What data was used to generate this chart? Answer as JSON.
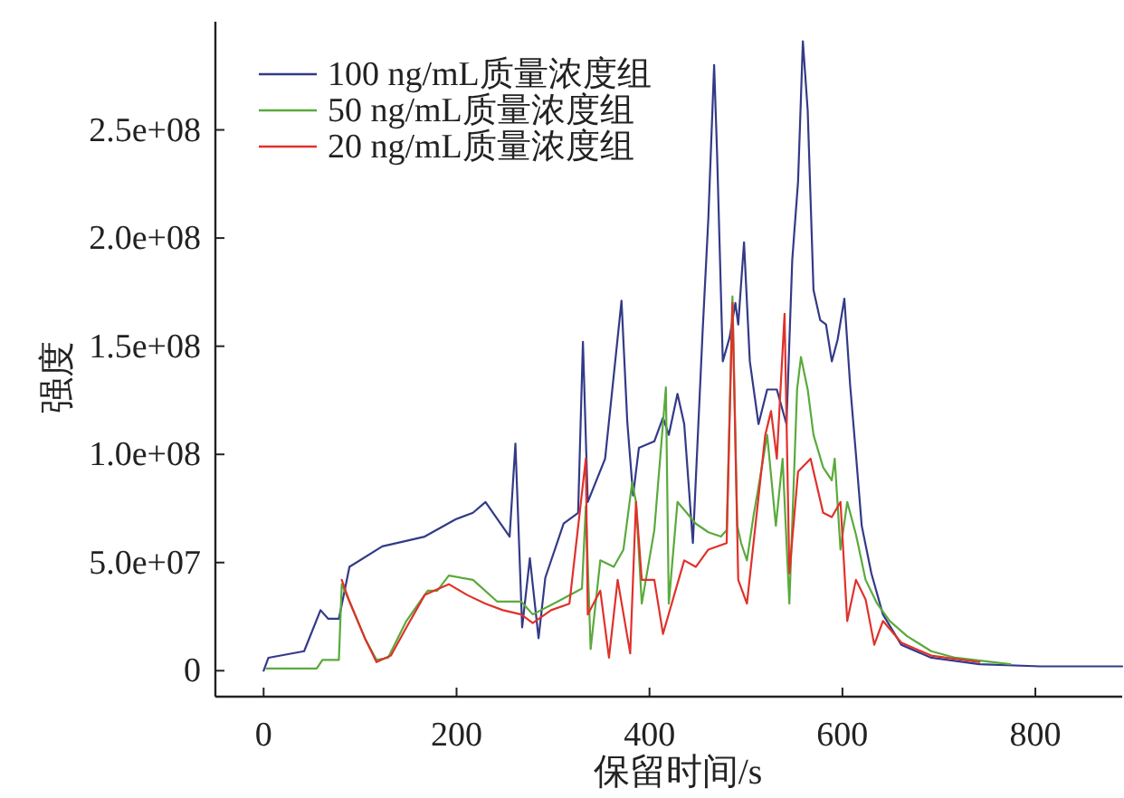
{
  "chart_data": {
    "type": "line",
    "xlabel": "保留时间/s",
    "ylabel": "强度",
    "xlim": [
      -50,
      890
    ],
    "ylim": [
      -12000000,
      300000000
    ],
    "xticks": [
      0,
      200,
      400,
      600,
      800
    ],
    "yticks": [
      {
        "value": 0,
        "label": "0"
      },
      {
        "value": 50000000,
        "label": "5.0e+07"
      },
      {
        "value": 100000000,
        "label": "1.0e+08"
      },
      {
        "value": 150000000,
        "label": "1.5e+08"
      },
      {
        "value": 200000000,
        "label": "2.0e+08"
      },
      {
        "value": 250000000,
        "label": "2.5e+08"
      }
    ],
    "legend": "top left",
    "grid": false,
    "series": [
      {
        "name": "100 ng/mL质量浓度组",
        "color": "#333a87",
        "x": [
          0,
          5,
          42,
          59,
          67,
          78,
          89,
          123,
          167,
          199,
          217,
          230,
          255,
          261,
          268,
          276,
          285,
          292,
          311,
          326,
          331,
          336,
          354,
          371,
          377,
          383,
          389,
          405,
          414,
          420,
          429,
          436,
          445,
          455,
          461,
          467,
          470,
          476,
          483,
          489,
          492,
          498,
          504,
          513,
          522,
          532,
          542,
          548,
          554,
          559,
          564,
          570,
          577,
          583,
          589,
          595,
          602,
          608,
          614,
          620,
          630,
          642,
          661,
          692,
          742,
          805,
          890
        ],
        "values": [
          0,
          6000000,
          9000000,
          28000000,
          24000000,
          24000000,
          48000000,
          57500000,
          62000000,
          70000000,
          73000000,
          78000000,
          62000000,
          105000000,
          20000000,
          52000000,
          15000000,
          43000000,
          68000000,
          73000000,
          152000000,
          78000000,
          98000000,
          171000000,
          115000000,
          81000000,
          103000000,
          106000000,
          117000000,
          109000000,
          128000000,
          114000000,
          59000000,
          156000000,
          209000000,
          280000000,
          240000000,
          143000000,
          154000000,
          170000000,
          160000000,
          198000000,
          143000000,
          114000000,
          130000000,
          130000000,
          114000000,
          190000000,
          226000000,
          291000000,
          259000000,
          176000000,
          162000000,
          160000000,
          143000000,
          153000000,
          172000000,
          132000000,
          100000000,
          67000000,
          45000000,
          26000000,
          12000000,
          6000000,
          3000000,
          2000000,
          2000000
        ]
      },
      {
        "name": "50 ng/mL质量浓度组",
        "color": "#5aaa3c",
        "x": [
          3,
          55,
          61,
          78,
          81,
          89,
          105,
          117,
          129,
          148,
          170,
          180,
          192,
          217,
          242,
          267,
          279,
          305,
          330,
          334,
          339,
          349,
          363,
          373,
          382,
          386,
          392,
          405,
          417,
          420,
          429,
          448,
          461,
          474,
          480,
          486,
          491,
          495,
          501,
          508,
          513,
          522,
          531,
          538,
          545,
          553,
          557,
          564,
          570,
          580,
          589,
          592,
          598,
          605,
          614,
          624,
          636,
          649,
          667,
          692,
          717,
          774
        ],
        "values": [
          1000000,
          1000000,
          5000000,
          5000000,
          40000000,
          32000000,
          15000000,
          5000000,
          6000000,
          23000000,
          37000000,
          37000000,
          44000000,
          42000000,
          32000000,
          32000000,
          26000000,
          32000000,
          38000000,
          76000000,
          10000000,
          51000000,
          48000000,
          56000000,
          87000000,
          78000000,
          31000000,
          65000000,
          131000000,
          31000000,
          78000000,
          68000000,
          64000000,
          62000000,
          65000000,
          173000000,
          67000000,
          59000000,
          51000000,
          72000000,
          85000000,
          109000000,
          67000000,
          98000000,
          31000000,
          130000000,
          145000000,
          130000000,
          109000000,
          94000000,
          88000000,
          98000000,
          56000000,
          78000000,
          63000000,
          42000000,
          31000000,
          23000000,
          16000000,
          9000000,
          6000000,
          3000000
        ]
      },
      {
        "name": "20 ng/mL质量浓度组",
        "color": "#e0312b",
        "x": [
          81,
          89,
          105,
          117,
          132,
          148,
          167,
          192,
          211,
          230,
          248,
          267,
          279,
          298,
          317,
          334,
          336,
          349,
          358,
          367,
          380,
          386,
          392,
          405,
          414,
          423,
          436,
          448,
          461,
          480,
          486,
          492,
          501,
          511,
          520,
          526,
          532,
          540,
          545,
          554,
          567,
          580,
          589,
          598,
          605,
          614,
          624,
          633,
          642,
          661,
          692,
          742
        ],
        "values": [
          42000000,
          32000000,
          15000000,
          4000000,
          7000000,
          20000000,
          35000000,
          40000000,
          35000000,
          31000000,
          28000000,
          26000000,
          22000000,
          28000000,
          31000000,
          98000000,
          26000000,
          37000000,
          6000000,
          42000000,
          8000000,
          78000000,
          42000000,
          42000000,
          17000000,
          31000000,
          51000000,
          48000000,
          56000000,
          59000000,
          170000000,
          42000000,
          31000000,
          72000000,
          109000000,
          120000000,
          98000000,
          165000000,
          45000000,
          92000000,
          98000000,
          73000000,
          71000000,
          78000000,
          23000000,
          42000000,
          33000000,
          12000000,
          23000000,
          13000000,
          7000000,
          4000000
        ]
      }
    ]
  }
}
